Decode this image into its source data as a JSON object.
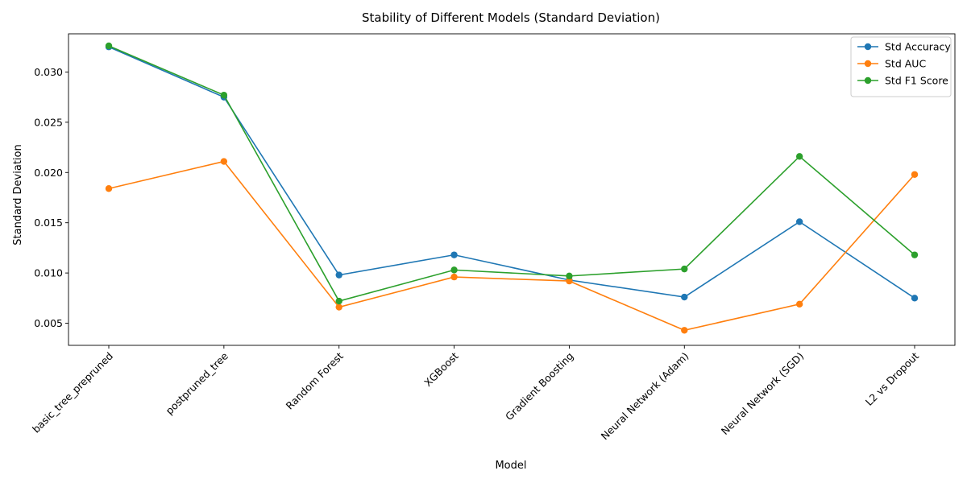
{
  "chart_data": {
    "type": "line",
    "title": "Stability of Different Models (Standard Deviation)",
    "xlabel": "Model",
    "ylabel": "Standard Deviation",
    "categories": [
      "basic_tree_prepruned",
      "postpruned_tree",
      "Random Forest",
      "XGBoost",
      "Gradient Boosting",
      "Neural Network (Adam)",
      "Neural Network (SGD)",
      "L2 vs Dropout"
    ],
    "ylim": [
      0.0028,
      0.0338
    ],
    "yticks": [
      "0.005",
      "0.010",
      "0.015",
      "0.020",
      "0.025",
      "0.030"
    ],
    "legend_position": "top-right",
    "grid": false,
    "series": [
      {
        "name": "Std Accuracy",
        "color": "#1f77b4",
        "values": [
          0.0325,
          0.0275,
          0.0098,
          0.0118,
          0.0093,
          0.0076,
          0.0151,
          0.0075
        ]
      },
      {
        "name": "Std AUC",
        "color": "#ff7f0e",
        "values": [
          0.0184,
          0.0211,
          0.0066,
          0.0096,
          0.0092,
          0.0043,
          0.0069,
          0.0198
        ]
      },
      {
        "name": "Std F1 Score",
        "color": "#2ca02c",
        "values": [
          0.0326,
          0.0277,
          0.0072,
          0.0103,
          0.0097,
          0.0104,
          0.0216,
          0.0118
        ]
      }
    ]
  }
}
